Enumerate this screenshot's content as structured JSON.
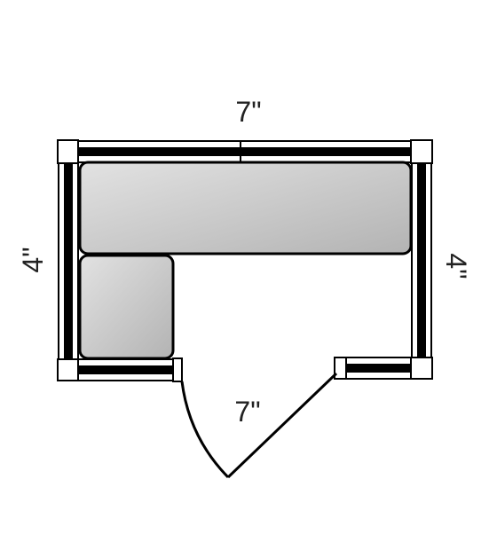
{
  "dimensions": {
    "top_width": "7\"",
    "door_width": "7\"",
    "left_depth": "4\"",
    "right_depth": "4\""
  },
  "colors": {
    "line": "#000000",
    "wall_fill": "#ffffff",
    "shelf_light": "#e2e2e2",
    "shelf_dark": "#b3b3b3",
    "background": "#ffffff"
  }
}
